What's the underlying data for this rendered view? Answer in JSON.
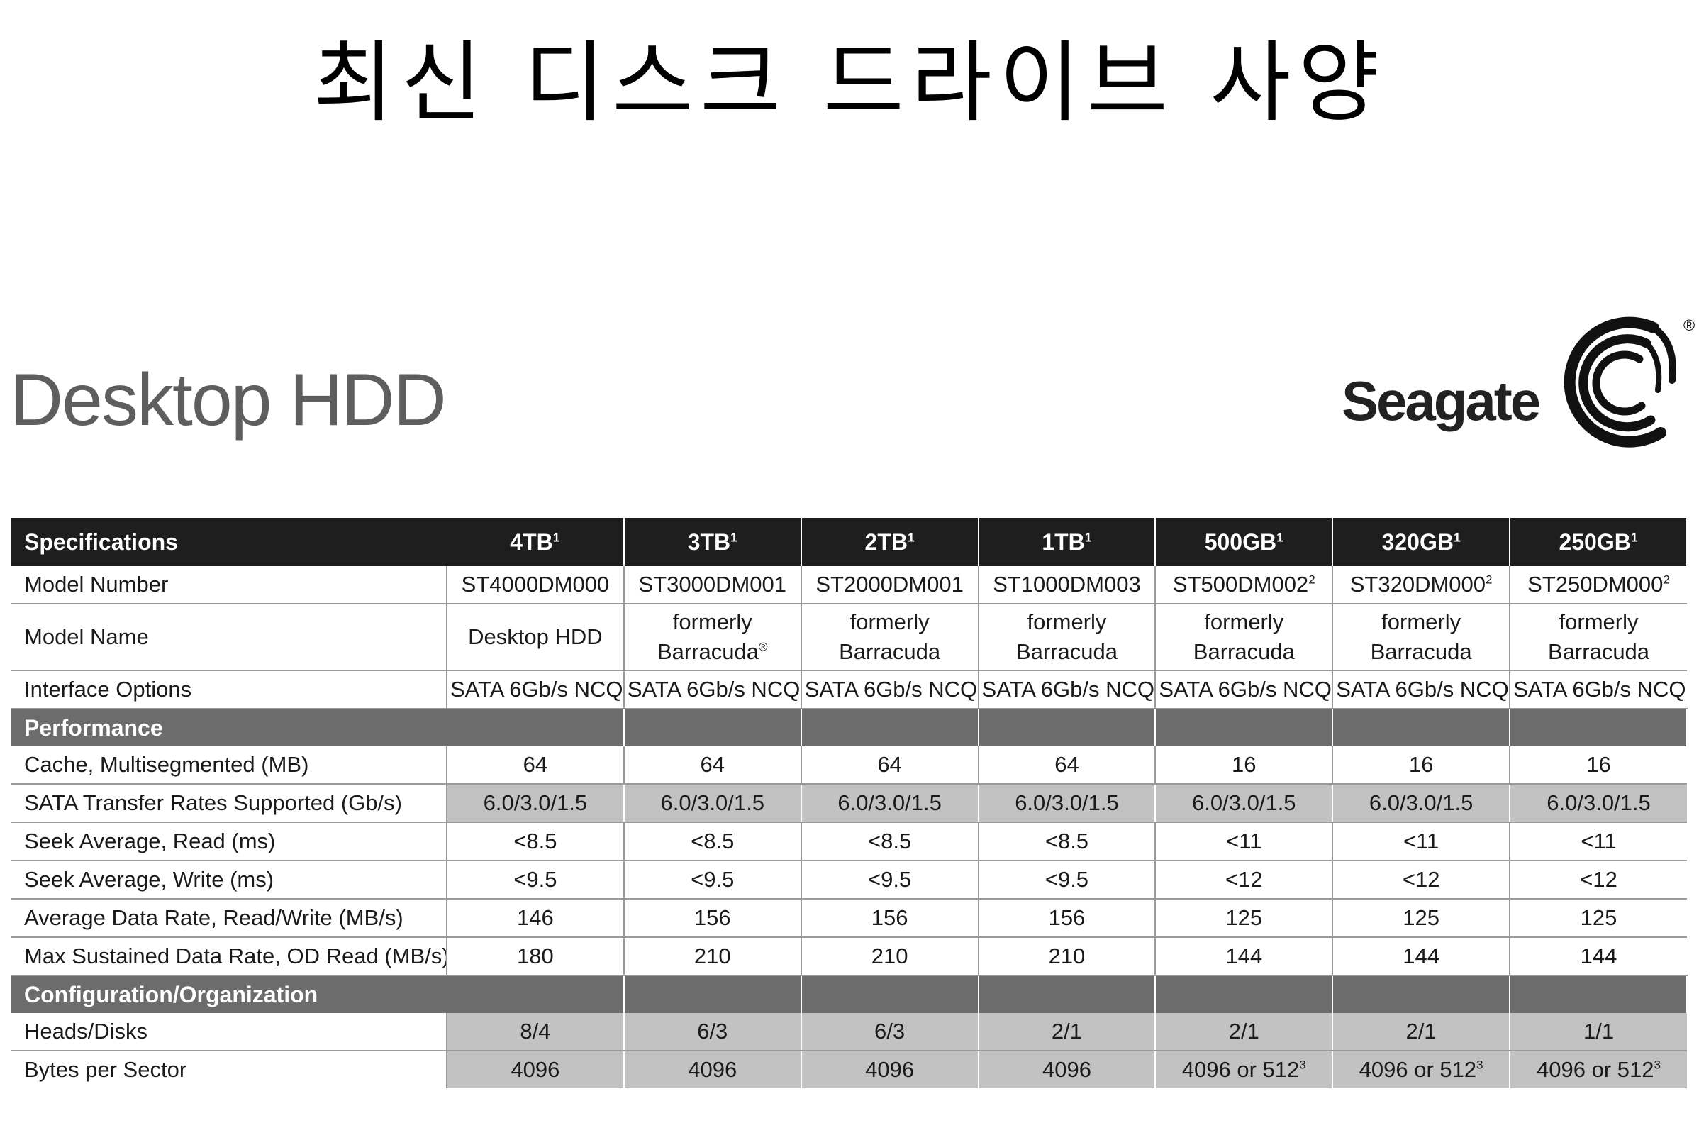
{
  "slide": {
    "title": "최신 디스크 드라이브 사양"
  },
  "product": {
    "title": "Desktop HDD"
  },
  "brand": {
    "name": "Seagate",
    "registered": "®",
    "logo_icon": "seagate-spiral-logo"
  },
  "table": {
    "header_label": "Specifications",
    "columns": [
      {
        "cap": "4TB",
        "note": "1"
      },
      {
        "cap": "3TB",
        "note": "1"
      },
      {
        "cap": "2TB",
        "note": "1"
      },
      {
        "cap": "1TB",
        "note": "1"
      },
      {
        "cap": "500GB",
        "note": "1"
      },
      {
        "cap": "320GB",
        "note": "1"
      },
      {
        "cap": "250GB",
        "note": "1"
      }
    ],
    "model_number": {
      "label": "Model Number",
      "values": [
        {
          "v": "ST4000DM000",
          "n": ""
        },
        {
          "v": "ST3000DM001",
          "n": ""
        },
        {
          "v": "ST2000DM001",
          "n": ""
        },
        {
          "v": "ST1000DM003",
          "n": ""
        },
        {
          "v": "ST500DM002",
          "n": "2"
        },
        {
          "v": "ST320DM000",
          "n": "2"
        },
        {
          "v": "ST250DM000",
          "n": "2"
        }
      ]
    },
    "model_name": {
      "label": "Model Name",
      "values": [
        {
          "l1": "Desktop HDD",
          "l2": "",
          "n": ""
        },
        {
          "l1": "formerly",
          "l2": "Barracuda",
          "n": "®"
        },
        {
          "l1": "formerly",
          "l2": "Barracuda",
          "n": ""
        },
        {
          "l1": "formerly",
          "l2": "Barracuda",
          "n": ""
        },
        {
          "l1": "formerly",
          "l2": "Barracuda",
          "n": ""
        },
        {
          "l1": "formerly",
          "l2": "Barracuda",
          "n": ""
        },
        {
          "l1": "formerly",
          "l2": "Barracuda",
          "n": ""
        }
      ]
    },
    "interface": {
      "label": "Interface Options",
      "values": [
        "SATA 6Gb/s NCQ",
        "SATA 6Gb/s NCQ",
        "SATA 6Gb/s NCQ",
        "SATA 6Gb/s NCQ",
        "SATA 6Gb/s NCQ",
        "SATA 6Gb/s NCQ",
        "SATA 6Gb/s NCQ"
      ]
    },
    "performance": {
      "section_label": "Performance",
      "rows": [
        {
          "label": "Cache, Multisegmented (MB)",
          "values": [
            "64",
            "64",
            "64",
            "64",
            "16",
            "16",
            "16"
          ],
          "shade": false
        },
        {
          "label": "SATA Transfer Rates Supported (Gb/s)",
          "values": [
            "6.0/3.0/1.5",
            "6.0/3.0/1.5",
            "6.0/3.0/1.5",
            "6.0/3.0/1.5",
            "6.0/3.0/1.5",
            "6.0/3.0/1.5",
            "6.0/3.0/1.5"
          ],
          "shade": true
        },
        {
          "label": "Seek Average, Read (ms)",
          "values": [
            "<8.5",
            "<8.5",
            "<8.5",
            "<8.5",
            "<11",
            "<11",
            "<11"
          ],
          "shade": false
        },
        {
          "label": "Seek Average, Write (ms)",
          "values": [
            "<9.5",
            "<9.5",
            "<9.5",
            "<9.5",
            "<12",
            "<12",
            "<12"
          ],
          "shade": false
        },
        {
          "label": "Average Data Rate, Read/Write (MB/s)",
          "values": [
            "146",
            "156",
            "156",
            "156",
            "125",
            "125",
            "125"
          ],
          "shade": false
        },
        {
          "label": "Max Sustained Data Rate, OD Read (MB/s)",
          "values": [
            "180",
            "210",
            "210",
            "210",
            "144",
            "144",
            "144"
          ],
          "shade": false
        }
      ]
    },
    "configuration": {
      "section_label": "Configuration/Organization",
      "rows": [
        {
          "label": "Heads/Disks",
          "values": [
            "8/4",
            "6/3",
            "6/3",
            "2/1",
            "2/1",
            "2/1",
            "1/1"
          ],
          "shade": true
        },
        {
          "label": "Bytes per Sector",
          "values": [
            {
              "v": "4096",
              "n": ""
            },
            {
              "v": "4096",
              "n": ""
            },
            {
              "v": "4096",
              "n": ""
            },
            {
              "v": "4096",
              "n": ""
            },
            {
              "v": "4096 or 512",
              "n": "3"
            },
            {
              "v": "4096 or 512",
              "n": "3"
            },
            {
              "v": "4096 or 512",
              "n": "3"
            }
          ],
          "shade": true
        }
      ]
    }
  }
}
